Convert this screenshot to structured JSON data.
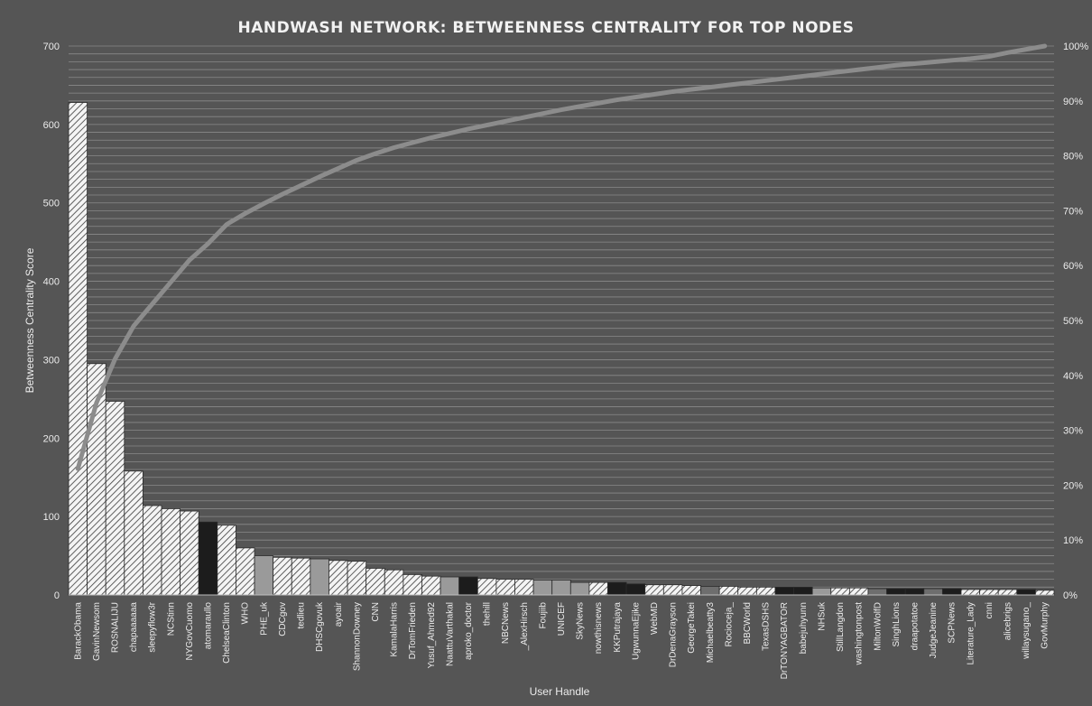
{
  "chart_data": {
    "type": "bar",
    "title": "HANDWASH NETWORK: BETWEENNESS CENTRALITY FOR TOP NODES",
    "xlabel": "User Handle",
    "ylabel": "Betweenness Centrality Score",
    "ylim": [
      0,
      700
    ],
    "yticks": [
      "0",
      "100",
      "200",
      "300",
      "400",
      "500",
      "600",
      "700"
    ],
    "y2lim": [
      0,
      100
    ],
    "y2ticks": [
      "0%",
      "10%",
      "20%",
      "30%",
      "40%",
      "50%",
      "60%",
      "70%",
      "80%",
      "90%",
      "100%"
    ],
    "grid": true,
    "legend": "none",
    "categories": [
      "BarackObama",
      "GavinNewsom",
      "ROSNALIJU",
      "chapaaaaaa",
      "sleepyflow3r",
      "NCStinn",
      "NYGovCuomo",
      "atomaraullo",
      "ChelseaClinton",
      "WHO",
      "PHE_uk",
      "CDCgov",
      "tedlieu",
      "DHSCgovuk",
      "ayoair",
      "ShannonDowney",
      "CNN",
      "KamalaHarris",
      "DrTomFrieden",
      "Yusuf_Ahmed92",
      "NaattuVarthakal",
      "aproko_doctor",
      "thehill",
      "NBCNews",
      "_AlexHirsch",
      "Foujiib",
      "UNICEF",
      "SkyNews",
      "nowthisnews",
      "KKPutrajaya",
      "UgwunnaEjike",
      "WebMD",
      "DrDenaGrayson",
      "GeorgeTakei",
      "Michaelbeatty3",
      "Rocioceja_",
      "BBCWorld",
      "TexasDSHS",
      "DrTONYAGBATOR",
      "babejuhyunn",
      "NHSuk",
      "StillLangdon",
      "washingtonpost",
      "MiltonWolfD",
      "SinghLions",
      "draapotatoe",
      "JudgeJeanine",
      "SCPNews",
      "Literature_Lady",
      "cnni",
      "alicebrigs",
      "willaysugano_",
      "GovMurphy"
    ],
    "values": [
      628,
      295,
      247,
      158,
      114,
      110,
      107,
      93,
      89,
      60,
      50,
      48,
      47,
      46,
      44,
      43,
      34,
      32,
      26,
      24,
      23,
      23,
      21,
      20,
      20,
      19,
      19,
      16,
      16,
      16,
      14,
      13,
      13,
      12,
      11,
      11,
      10,
      10,
      10,
      10,
      9,
      9,
      9,
      8,
      8,
      8,
      8,
      8,
      7,
      7,
      7,
      7,
      6
    ],
    "fills": [
      "hatch",
      "hatch",
      "hatch",
      "hatch",
      "hatch",
      "hatch",
      "hatch",
      "#1c1c1c",
      "hatch",
      "hatch",
      "#9a9a9a",
      "hatch",
      "hatch",
      "#9a9a9a",
      "hatch",
      "hatch",
      "hatch",
      "hatch",
      "hatch",
      "hatch",
      "#9a9a9a",
      "#1c1c1c",
      "hatch",
      "hatch",
      "hatch",
      "#9a9a9a",
      "#9a9a9a",
      "#9a9a9a",
      "hatch",
      "#1c1c1c",
      "#1c1c1c",
      "hatch",
      "hatch",
      "hatch",
      "#6e6e6e",
      "hatch",
      "hatch",
      "hatch",
      "#1c1c1c",
      "#1c1c1c",
      "#9a9a9a",
      "hatch",
      "hatch",
      "#6e6e6e",
      "#1c1c1c",
      "#1c1c1c",
      "#6e6e6e",
      "#1c1c1c",
      "hatch",
      "hatch",
      "hatch",
      "#1c1c1c",
      "hatch"
    ],
    "cumulative_pct": [
      23,
      35,
      43,
      49,
      53,
      57,
      61,
      64,
      67.5,
      69.5,
      71.3,
      73,
      74.6,
      76.2,
      77.7,
      79.2,
      80.4,
      81.5,
      82.4,
      83.3,
      84.1,
      84.9,
      85.6,
      86.3,
      87,
      87.7,
      88.4,
      89,
      89.6,
      90.2,
      90.7,
      91.2,
      91.7,
      92.1,
      92.5,
      92.9,
      93.3,
      93.7,
      94.1,
      94.5,
      94.9,
      95.3,
      95.7,
      96.1,
      96.5,
      96.8,
      97.1,
      97.4,
      97.7,
      98.1,
      98.8,
      99.4,
      100
    ],
    "colors": {
      "background": "#555555",
      "line": "#8c8c8c",
      "grid": "#8a8a8a",
      "hatch_bg": "#f4f4f4",
      "hatch_line": "#3a3a3a"
    }
  }
}
